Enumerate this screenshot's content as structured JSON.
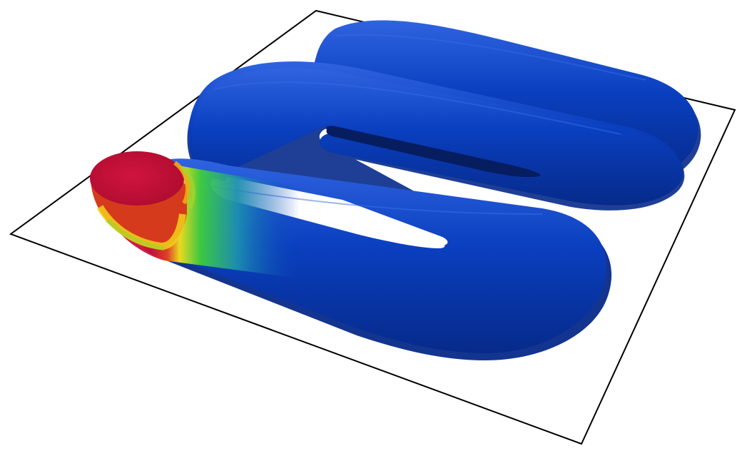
{
  "scene": {
    "background_color": "#ffffff",
    "plate_outline_color": "#000000",
    "body_color": "#0a3fbf",
    "body_shadow_color": "#062a8a",
    "body_highlight_color": "#2f63e0",
    "heat_colors": {
      "hot": "#c8103a",
      "warm": "#e8401c",
      "mid": "#f6e21a",
      "cool": "#3fcf3a",
      "cold": "#0a3fbf"
    },
    "objects": [
      "base-plate",
      "serpentine-channel",
      "inlet-heat-spot"
    ]
  }
}
